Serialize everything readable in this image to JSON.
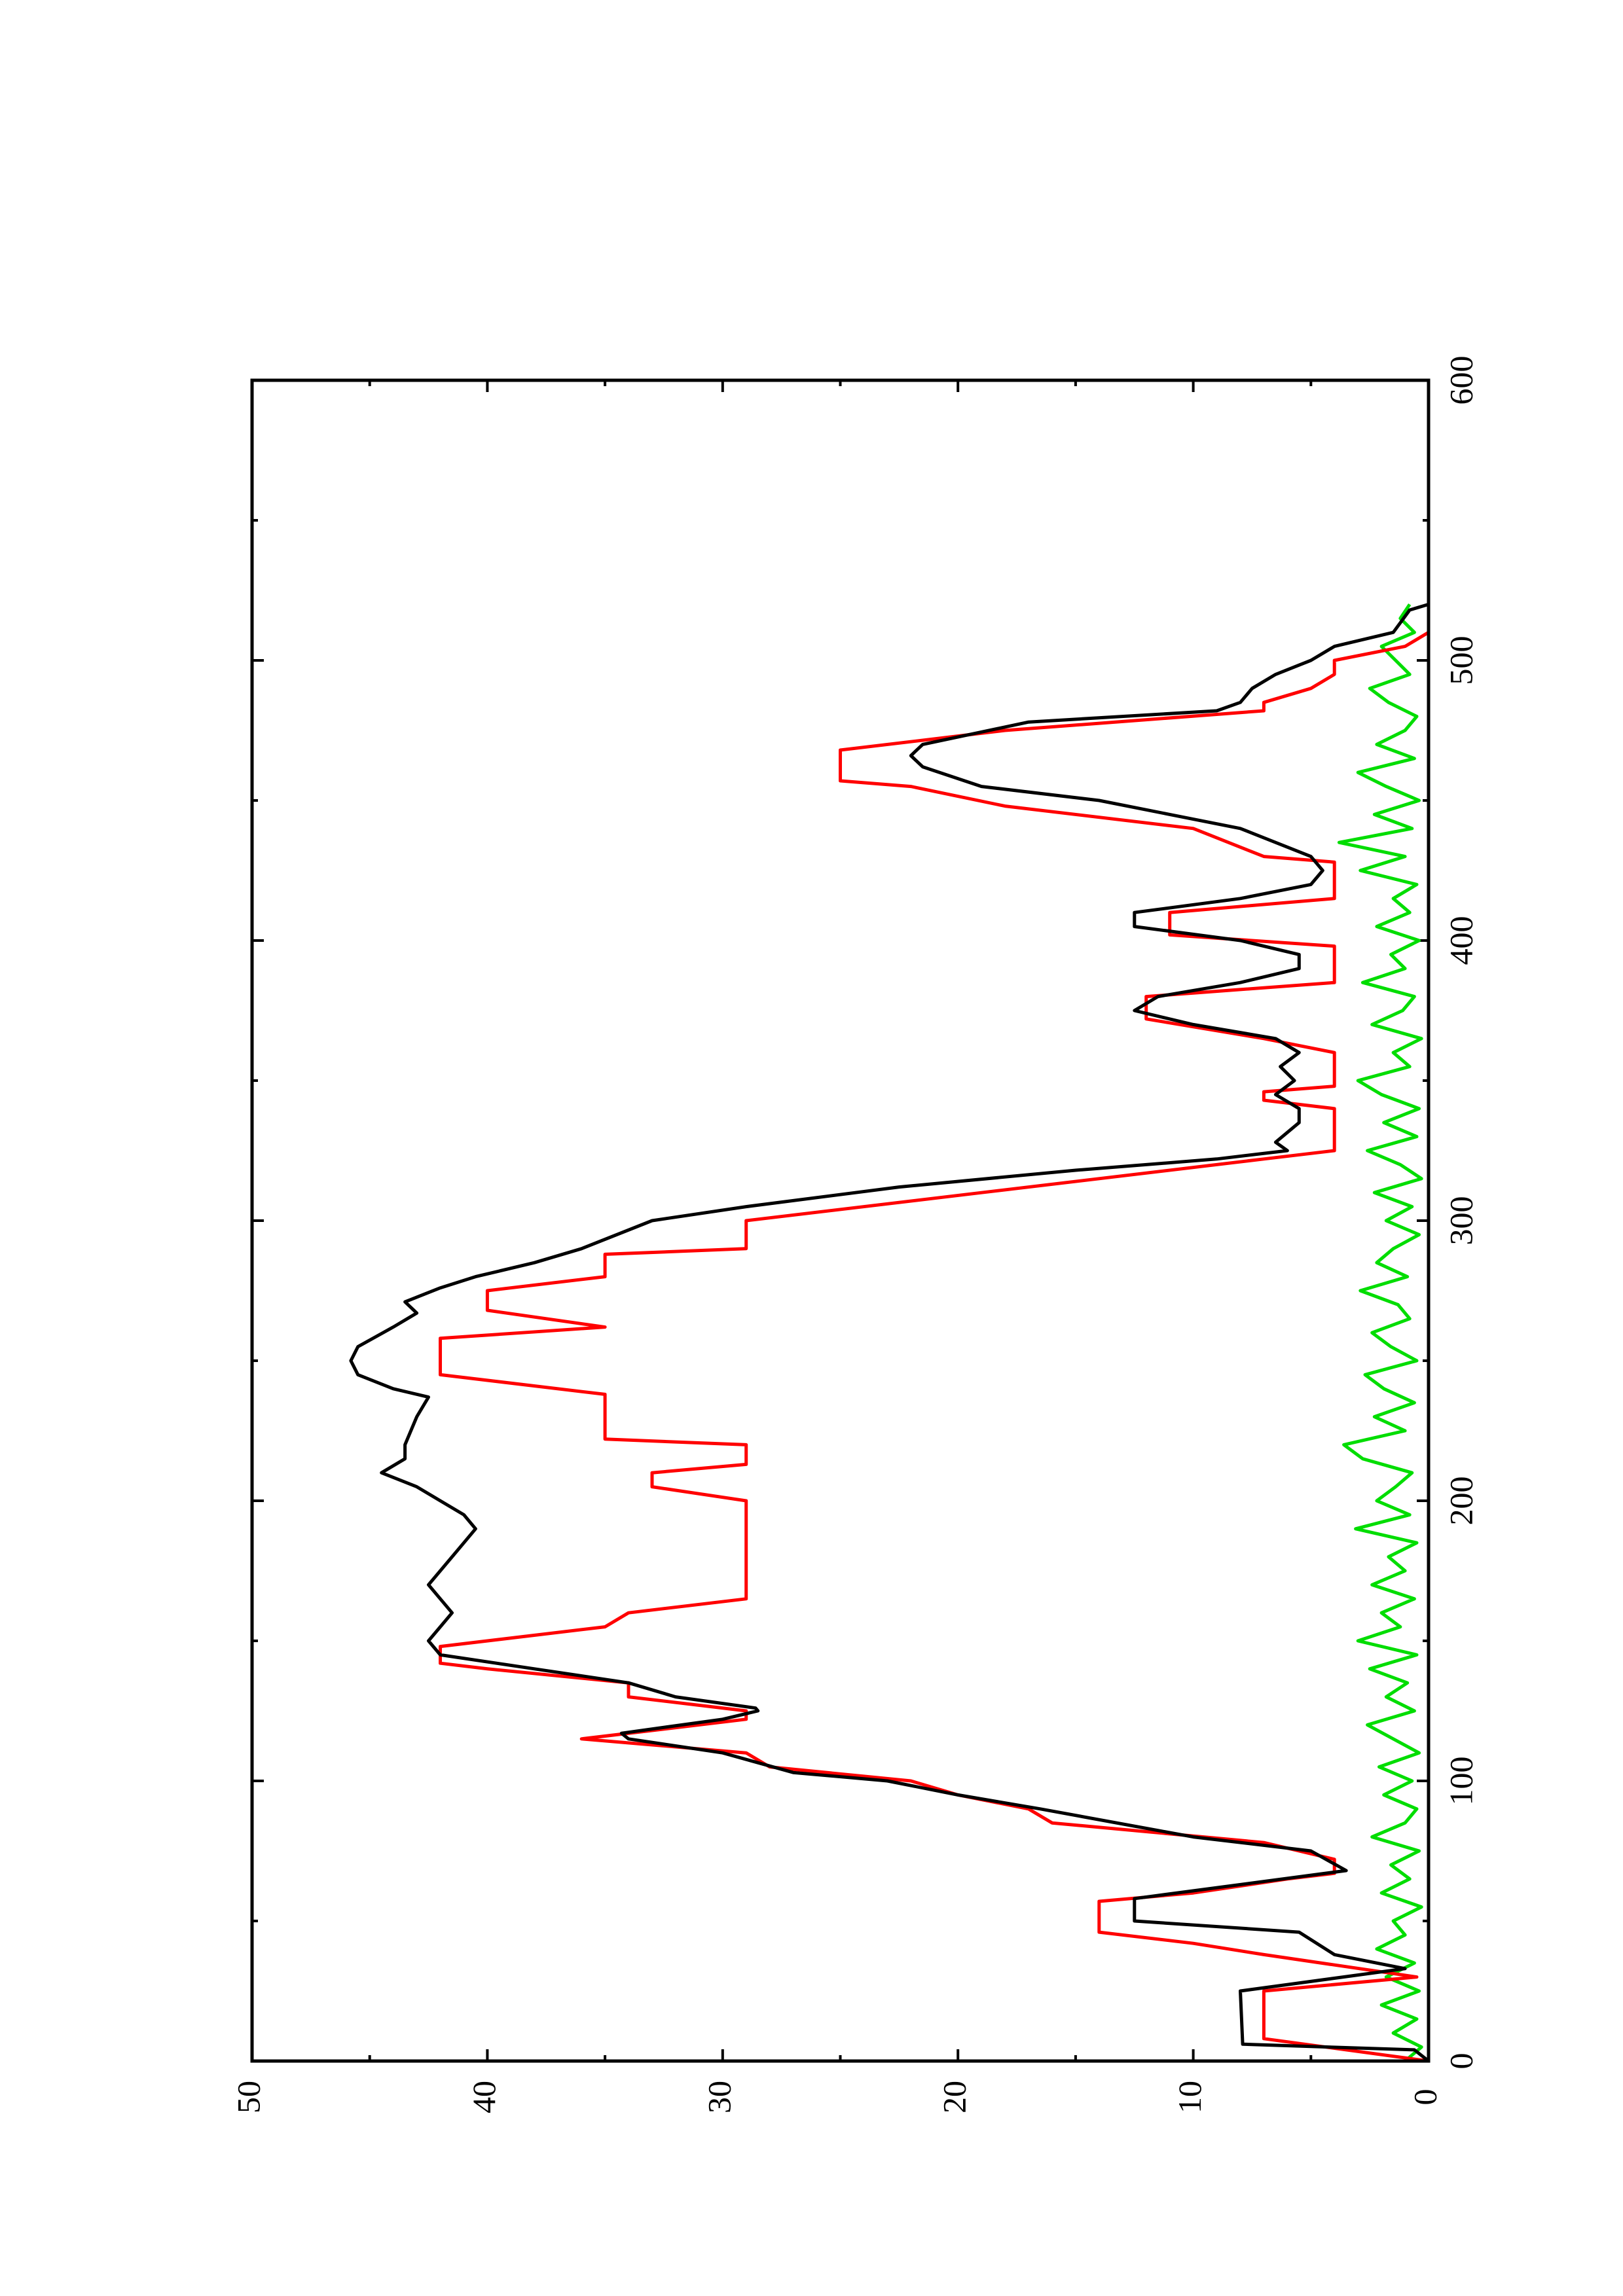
{
  "chart_data": {
    "type": "line",
    "xlim": [
      0,
      600
    ],
    "xticks": [
      0,
      100,
      200,
      300,
      400,
      500,
      600
    ],
    "ylim": [
      0,
      50
    ],
    "yticks": [
      0,
      10,
      20,
      30,
      40,
      50
    ],
    "orientation": "rotated",
    "series": [
      {
        "color": "#000000",
        "x": [
          0,
          4,
          6,
          25,
          33,
          38,
          46,
          50,
          58,
          68,
          75,
          80,
          90,
          95,
          100,
          103,
          110,
          115,
          117,
          122,
          125,
          126,
          130,
          135,
          140,
          145,
          150,
          155,
          160,
          165,
          170,
          180,
          185,
          190,
          195,
          200,
          205,
          210,
          215,
          220,
          230,
          237,
          240,
          245,
          250,
          255,
          262,
          267,
          271,
          276,
          280,
          285,
          290,
          300,
          305,
          312,
          318,
          322,
          325,
          328,
          335,
          340,
          345,
          350,
          355,
          360,
          365,
          370,
          375,
          380,
          385,
          390,
          395,
          400,
          405,
          410,
          415,
          420,
          425,
          430,
          435,
          440,
          445,
          450,
          455,
          462,
          466,
          470,
          478,
          482,
          485,
          490,
          495,
          500,
          505,
          510,
          518,
          520
        ],
        "values": [
          0,
          0.6,
          7.9,
          8,
          1,
          4,
          5.5,
          12.5,
          12.5,
          3.5,
          5,
          10,
          16.5,
          20,
          23,
          27,
          30,
          34,
          34.3,
          30,
          28.5,
          28.6,
          32,
          34,
          38,
          42,
          42.5,
          42,
          41.5,
          42,
          42.5,
          41.5,
          41,
          40.5,
          41,
          42,
          43,
          44.5,
          43.5,
          43.5,
          43,
          42.5,
          44,
          45.5,
          45.8,
          45.5,
          44,
          43,
          43.5,
          42,
          40.5,
          38,
          36,
          33,
          29,
          22.5,
          15,
          9,
          6,
          6.5,
          5.5,
          5.5,
          6.5,
          5.7,
          6.3,
          5.5,
          6.5,
          10,
          12.5,
          11.5,
          8,
          5.5,
          5.5,
          8,
          12.5,
          12.5,
          8,
          5,
          4.5,
          5,
          6.5,
          8,
          11,
          14,
          19,
          21.5,
          22,
          21.5,
          17,
          9,
          8,
          7.5,
          6.5,
          5,
          4,
          1.5,
          0.8,
          0
        ]
      },
      {
        "color": "#ff0000",
        "x": [
          0,
          8,
          25,
          30,
          38,
          42,
          46,
          57,
          60,
          65,
          67,
          72,
          78,
          85,
          90,
          95,
          100,
          105,
          110,
          115,
          122,
          125,
          130,
          135,
          140,
          142,
          148,
          155,
          160,
          165,
          200,
          205,
          210,
          213,
          220,
          222,
          238,
          245,
          258,
          262,
          268,
          275,
          280,
          288,
          290,
          300,
          310,
          322,
          325,
          340,
          343,
          346,
          348,
          360,
          365,
          372,
          380,
          385,
          398,
          402,
          410,
          415,
          428,
          430,
          440,
          448,
          455,
          457,
          468,
          475,
          482,
          485,
          490,
          495,
          500,
          505,
          510
        ],
        "values": [
          0,
          7,
          7,
          0.5,
          7,
          10,
          14,
          14,
          10,
          6,
          4,
          4,
          7,
          16,
          17,
          20,
          22,
          28,
          29,
          36,
          29,
          29,
          34,
          34,
          40,
          42,
          42,
          35,
          34,
          29,
          29,
          33,
          33,
          29,
          29,
          35,
          35,
          42,
          42,
          35,
          40,
          40,
          35,
          35,
          29,
          29,
          19,
          7,
          4,
          4,
          7,
          7,
          4,
          4,
          7,
          12,
          12,
          4,
          4,
          11,
          11,
          4,
          4,
          7,
          10,
          18,
          22,
          25,
          25,
          18,
          7,
          7,
          5,
          4,
          4,
          1,
          0
        ]
      },
      {
        "color": "#00dd00",
        "x": [
          0,
          5,
          10,
          15,
          20,
          25,
          30,
          35,
          40,
          45,
          50,
          55,
          60,
          65,
          70,
          75,
          80,
          85,
          90,
          95,
          100,
          105,
          110,
          115,
          120,
          125,
          130,
          135,
          140,
          145,
          150,
          155,
          160,
          165,
          170,
          175,
          180,
          185,
          190,
          195,
          200,
          205,
          210,
          215,
          220,
          225,
          230,
          235,
          240,
          245,
          250,
          255,
          260,
          265,
          270,
          275,
          280,
          285,
          290,
          295,
          300,
          305,
          310,
          315,
          320,
          325,
          330,
          335,
          340,
          345,
          350,
          355,
          360,
          365,
          370,
          375,
          380,
          385,
          390,
          395,
          400,
          405,
          410,
          415,
          420,
          425,
          430,
          435,
          440,
          445,
          450,
          455,
          460,
          465,
          470,
          475,
          480,
          485,
          490,
          495,
          500,
          505,
          510,
          515,
          520
        ],
        "values": [
          1,
          0.3,
          1.5,
          0.5,
          2,
          0.4,
          1.8,
          0.6,
          2.2,
          1,
          1.5,
          0.3,
          2,
          0.8,
          1.6,
          0.4,
          2.4,
          1,
          0.5,
          1.9,
          0.7,
          2.1,
          0.4,
          1.5,
          2.6,
          0.6,
          1.8,
          0.9,
          2.5,
          0.5,
          3,
          1.2,
          2,
          0.6,
          2.4,
          1,
          1.7,
          0.5,
          3.1,
          0.8,
          2.2,
          1.4,
          0.7,
          2.8,
          3.6,
          1,
          2.3,
          0.6,
          1.9,
          2.7,
          0.5,
          1.6,
          2.4,
          0.8,
          1.3,
          2.9,
          0.9,
          2.2,
          1.5,
          0.4,
          1.8,
          0.7,
          2.3,
          0.3,
          1.2,
          2.6,
          0.5,
          1.9,
          0.4,
          2,
          3,
          0.8,
          1.5,
          0.3,
          2.4,
          1.1,
          0.6,
          2.8,
          1,
          1.6,
          0.4,
          2.2,
          0.8,
          1.5,
          0.5,
          2.9,
          1,
          3.8,
          0.7,
          2.3,
          0.4,
          1.8,
          3,
          0.6,
          2.2,
          1,
          0.5,
          1.7,
          2.5,
          0.8,
          1.4,
          2,
          0.6,
          1.2,
          0.8
        ]
      }
    ]
  }
}
